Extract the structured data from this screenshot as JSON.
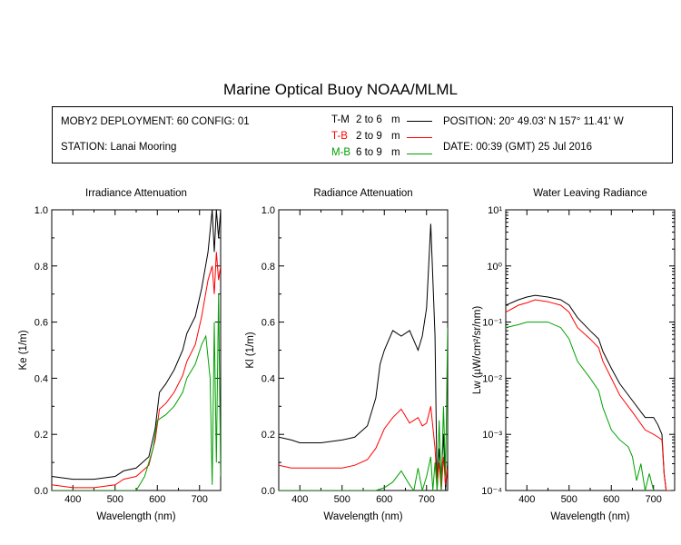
{
  "title": "Marine Optical Buoy NOAA/MLML",
  "info": {
    "deployment": "MOBY2 DEPLOYMENT: 60 CONFIG: 01",
    "station": "STATION: Lanai Mooring",
    "position": "POSITION: 20° 49.03' N   157° 11.41' W",
    "date": "DATE: 00:39 (GMT) 25 Jul 2016"
  },
  "legend": [
    {
      "code": "T-M",
      "range": "2 to 6",
      "unit": "m",
      "color": "#000000"
    },
    {
      "code": "T-B",
      "range": "2 to 9",
      "unit": "m",
      "color": "#ff0000"
    },
    {
      "code": "M-B",
      "range": "6 to 9",
      "unit": "m",
      "color": "#00a000"
    }
  ],
  "chart_data": [
    {
      "type": "line",
      "title": "Irradiance Attenuation",
      "xlabel": "Wavelength (nm)",
      "ylabel": "Ke  (1/m)",
      "xlim": [
        350,
        750
      ],
      "ylim": [
        0,
        1
      ],
      "xticks": [
        "400",
        "500",
        "600",
        "700"
      ],
      "yticks": [
        "0.0",
        "0.2",
        "0.4",
        "0.6",
        "0.8",
        "1.0"
      ],
      "series": [
        {
          "name": "T-M",
          "color": "#000000",
          "x": [
            350,
            400,
            450,
            500,
            520,
            550,
            580,
            595,
            605,
            620,
            640,
            660,
            670,
            690,
            705,
            720,
            730,
            735,
            740,
            745,
            750
          ],
          "y": [
            0.05,
            0.04,
            0.04,
            0.05,
            0.07,
            0.08,
            0.12,
            0.22,
            0.35,
            0.38,
            0.43,
            0.5,
            0.56,
            0.62,
            0.72,
            0.85,
            1.0,
            0.85,
            1.0,
            0.9,
            1.0
          ]
        },
        {
          "name": "T-B",
          "color": "#ff0000",
          "x": [
            350,
            400,
            450,
            500,
            520,
            550,
            580,
            595,
            605,
            620,
            640,
            660,
            670,
            690,
            705,
            720,
            730,
            735,
            740,
            745,
            750
          ],
          "y": [
            0.02,
            0.01,
            0.01,
            0.02,
            0.04,
            0.05,
            0.09,
            0.18,
            0.29,
            0.31,
            0.35,
            0.41,
            0.46,
            0.52,
            0.62,
            0.75,
            0.8,
            0.7,
            0.85,
            0.75,
            0.8
          ]
        },
        {
          "name": "M-B",
          "color": "#00a000",
          "x": [
            350,
            400,
            450,
            500,
            530,
            550,
            570,
            590,
            600,
            620,
            640,
            660,
            670,
            690,
            705,
            715,
            725,
            730,
            735,
            740,
            745,
            750
          ],
          "y": [
            0.0,
            0.0,
            0.0,
            0.0,
            0.0,
            0.0,
            0.05,
            0.15,
            0.25,
            0.27,
            0.3,
            0.35,
            0.4,
            0.45,
            0.52,
            0.55,
            0.4,
            0.02,
            0.6,
            0.1,
            0.7,
            0.05
          ]
        }
      ]
    },
    {
      "type": "line",
      "title": "Radiance Attenuation",
      "xlabel": "Wavelength (nm)",
      "ylabel": "Kl  (1/m)",
      "xlim": [
        350,
        750
      ],
      "ylim": [
        0,
        1
      ],
      "xticks": [
        "400",
        "500",
        "600",
        "700"
      ],
      "yticks": [
        "0.0",
        "0.2",
        "0.4",
        "0.6",
        "0.8",
        "1.0"
      ],
      "series": [
        {
          "name": "T-M",
          "color": "#000000",
          "x": [
            350,
            380,
            400,
            450,
            500,
            530,
            560,
            580,
            590,
            600,
            620,
            640,
            660,
            680,
            690,
            700,
            710,
            720,
            725,
            730,
            735,
            740,
            745,
            750
          ],
          "y": [
            0.19,
            0.18,
            0.17,
            0.17,
            0.18,
            0.19,
            0.23,
            0.33,
            0.45,
            0.5,
            0.57,
            0.55,
            0.57,
            0.5,
            0.55,
            0.65,
            0.95,
            0.55,
            0.0,
            0.15,
            0.05,
            0.2,
            0.0,
            0.1
          ]
        },
        {
          "name": "T-B",
          "color": "#ff0000",
          "x": [
            350,
            380,
            400,
            450,
            500,
            530,
            560,
            580,
            600,
            620,
            640,
            660,
            680,
            690,
            700,
            710,
            720,
            725,
            730,
            735,
            740,
            745,
            750
          ],
          "y": [
            0.09,
            0.08,
            0.08,
            0.08,
            0.08,
            0.09,
            0.11,
            0.15,
            0.22,
            0.26,
            0.29,
            0.24,
            0.26,
            0.23,
            0.24,
            0.3,
            0.15,
            0.02,
            0.1,
            0.0,
            0.12,
            0.02,
            0.08
          ]
        },
        {
          "name": "M-B",
          "color": "#00a000",
          "x": [
            350,
            500,
            560,
            580,
            600,
            620,
            640,
            660,
            670,
            680,
            690,
            700,
            710,
            715,
            720,
            725,
            730,
            735,
            740,
            745,
            750
          ],
          "y": [
            0.0,
            0.0,
            0.0,
            0.0,
            0.01,
            0.03,
            0.07,
            0.02,
            0.0,
            0.08,
            0.0,
            0.05,
            0.12,
            0.0,
            0.1,
            0.0,
            0.25,
            0.0,
            0.3,
            0.05,
            0.58
          ]
        }
      ]
    },
    {
      "type": "line",
      "title": "Water Leaving Radiance",
      "xlabel": "Wavelength (nm)",
      "ylabel": "Lw  (µW/cm²/sr/nm)",
      "xscale": "log10-y",
      "xlim": [
        350,
        750
      ],
      "ylim": [
        0.0001,
        10
      ],
      "xticks": [
        "400",
        "500",
        "600",
        "700"
      ],
      "yticks": [
        "10⁻⁴",
        "10⁻³",
        "10⁻²",
        "10⁻¹",
        "10⁰",
        "10¹"
      ],
      "series": [
        {
          "name": "T-M",
          "color": "#000000",
          "x": [
            350,
            380,
            400,
            420,
            450,
            480,
            500,
            520,
            550,
            570,
            580,
            600,
            620,
            650,
            680,
            700,
            710,
            720,
            725,
            730,
            740
          ],
          "y": [
            0.2,
            0.25,
            0.28,
            0.3,
            0.28,
            0.25,
            0.2,
            0.12,
            0.07,
            0.05,
            0.03,
            0.015,
            0.008,
            0.004,
            0.002,
            0.002,
            0.0015,
            0.001,
            0.0002,
            0.0001,
            0.0001
          ]
        },
        {
          "name": "T-B",
          "color": "#ff0000",
          "x": [
            350,
            380,
            400,
            420,
            450,
            480,
            500,
            520,
            550,
            570,
            580,
            600,
            620,
            650,
            680,
            700,
            710,
            720,
            725,
            730,
            740
          ],
          "y": [
            0.15,
            0.2,
            0.22,
            0.25,
            0.23,
            0.2,
            0.15,
            0.08,
            0.05,
            0.035,
            0.02,
            0.01,
            0.005,
            0.0025,
            0.0012,
            0.001,
            0.0009,
            0.0008,
            0.0002,
            0.0001,
            0.0001
          ]
        },
        {
          "name": "M-B",
          "color": "#00a000",
          "x": [
            350,
            380,
            400,
            420,
            450,
            480,
            500,
            520,
            550,
            570,
            580,
            600,
            620,
            640,
            650,
            660,
            670,
            680,
            690,
            700
          ],
          "y": [
            0.08,
            0.09,
            0.1,
            0.1,
            0.1,
            0.08,
            0.05,
            0.02,
            0.01,
            0.006,
            0.003,
            0.0012,
            0.0008,
            0.0006,
            0.0004,
            0.00015,
            0.0003,
            0.0001,
            0.0002,
            0.0001
          ]
        }
      ]
    }
  ]
}
